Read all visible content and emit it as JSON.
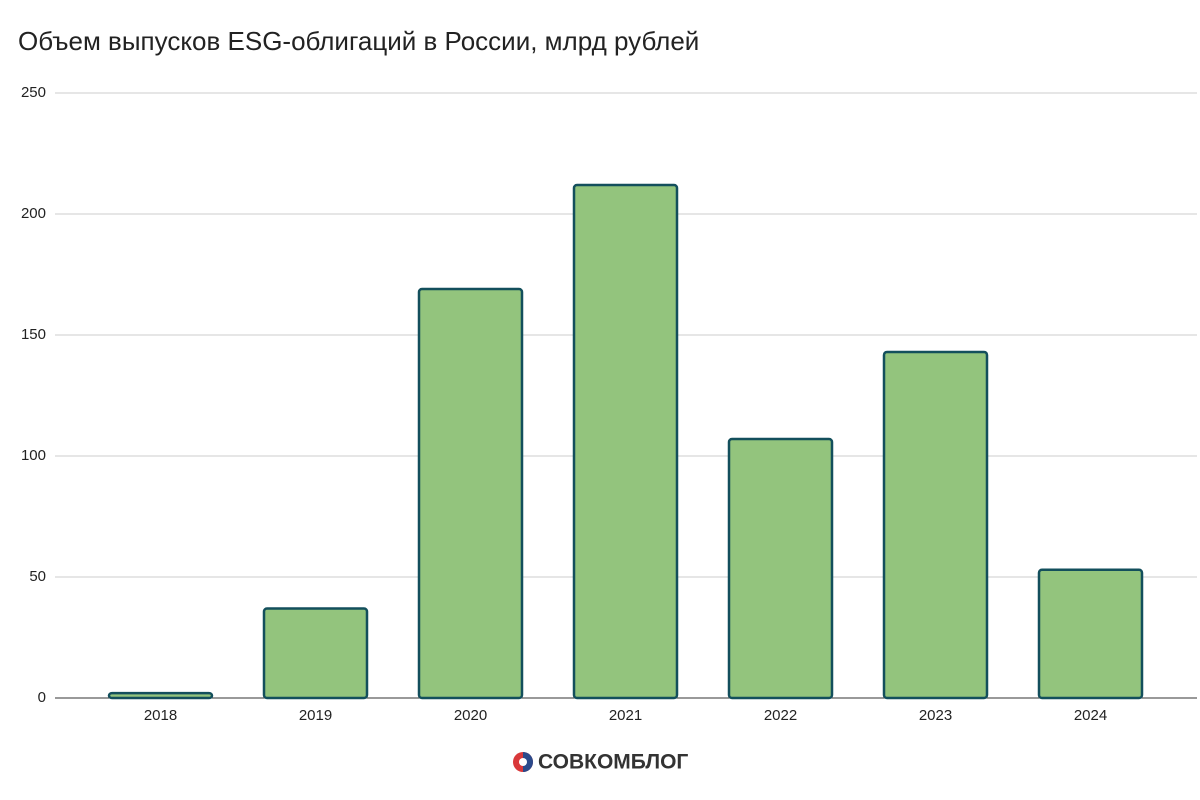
{
  "chart_data": {
    "type": "bar",
    "title": "Объем выпусков ESG-облигаций в России, млрд рублей",
    "categories": [
      "2018",
      "2019",
      "2020",
      "2021",
      "2022",
      "2023",
      "2024"
    ],
    "values": [
      2,
      37,
      169,
      212,
      107,
      143,
      53
    ],
    "color": "#93c47d",
    "edge_color": "#134f5c",
    "ylim": [
      0,
      250
    ],
    "yticks": [
      0,
      50,
      100,
      150,
      200,
      250
    ],
    "grid": true
  },
  "footer": {
    "logo": "СОВКОМБЛОГ"
  }
}
